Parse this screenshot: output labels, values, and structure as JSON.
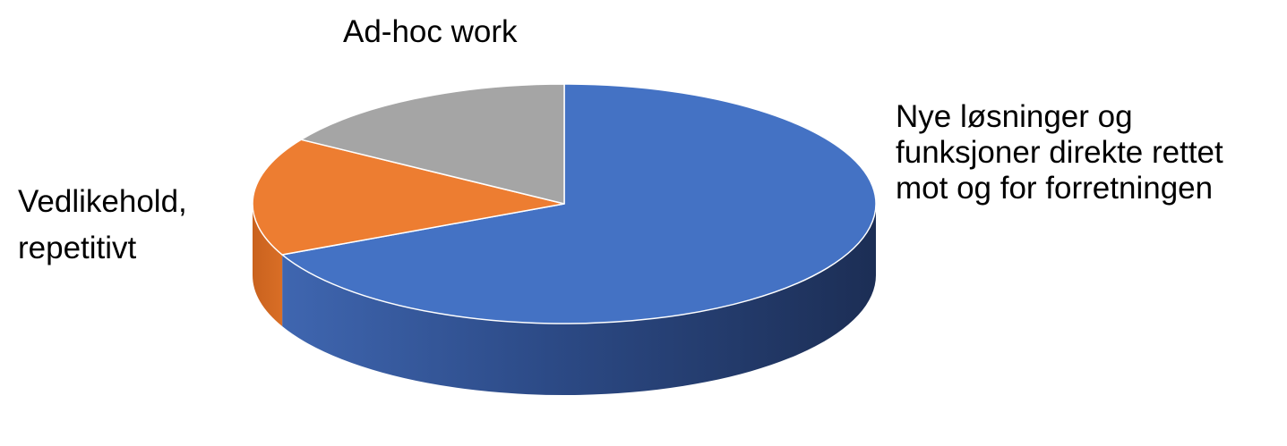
{
  "chart_data": {
    "type": "pie",
    "style": "3d",
    "title": "",
    "legend": "none",
    "categories": [
      "Nye løsninger og funksjoner direkte rettet mot og for forretningen",
      "Vedlikehold, repetitivt",
      "Ad-hoc work"
    ],
    "values": [
      68,
      16,
      16
    ],
    "unit": "percent",
    "colors": [
      "#4472C4",
      "#ED7D31",
      "#A5A5A5"
    ],
    "labels": [
      {
        "lines": [
          "Nye løsninger og",
          "funksjoner direkte rettet",
          "mot og for forretningen"
        ]
      },
      {
        "lines": [
          "Vedlikehold,",
          "repetitivt"
        ]
      },
      {
        "lines": [
          "Ad-hoc work"
        ]
      }
    ]
  }
}
